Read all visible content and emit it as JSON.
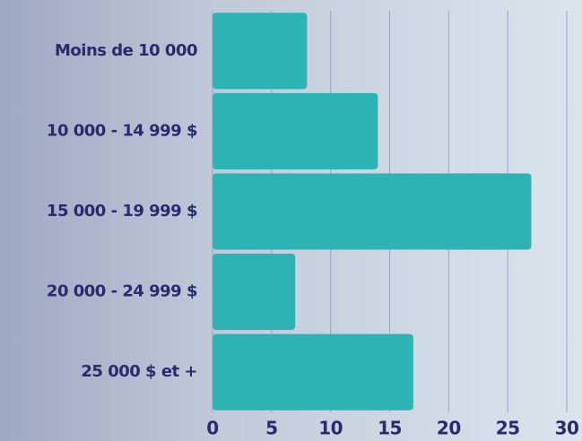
{
  "chart_data": {
    "type": "barh",
    "categories": [
      "Moins de 10 000",
      "10 000 - 14 999 $",
      "15 000 - 19 999 $",
      "20 000 - 24 999 $",
      "25 000 $ et +"
    ],
    "values": [
      8,
      14,
      27,
      7,
      17
    ],
    "color": "#2cb3b3",
    "xlim": [
      0,
      30
    ],
    "xticks": [
      0,
      5,
      10,
      15,
      20,
      25,
      30
    ],
    "grid": true
  }
}
